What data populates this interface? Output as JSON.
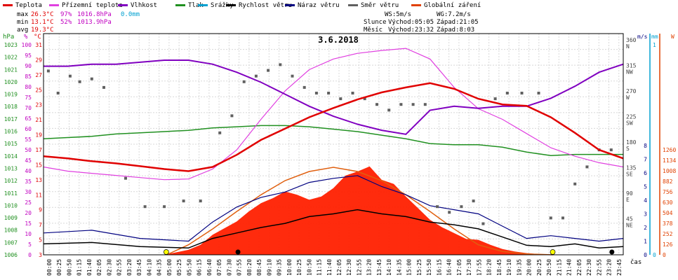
{
  "legend": [
    {
      "label": "Teplota",
      "color": "#e00000"
    },
    {
      "label": "Přízemní teplota",
      "color": "#e040e0"
    },
    {
      "label": "Vlhkost",
      "color": "#8000c0"
    },
    {
      "label": "Tlak",
      "color": "#209020"
    },
    {
      "label": "Srážky",
      "color": "#00a0d0"
    },
    {
      "label": "Rychlost větru",
      "color": "#000000"
    },
    {
      "label": "Náraz větru",
      "color": "#000080"
    },
    {
      "label": "Směr větru",
      "color": "#606060"
    },
    {
      "label": "Globální záření",
      "color": "#e04000"
    }
  ],
  "stats": {
    "max_label": "max",
    "max_temp": "26.3°C",
    "max_hum": "97%",
    "max_press": "1016.8hPa",
    "max_rain": "0.0mm",
    "min_label": "min",
    "min_temp": "13.1°C",
    "min_hum": "52%",
    "min_press": "1013.9hPa",
    "avg_label": "avg",
    "avg_temp": "19.3°C",
    "ws": "WS:5m/s",
    "wg": "WG:7.2m/s",
    "sun_label": "Slunce",
    "sun_rise": "Východ:05:05",
    "sun_set": "Západ:21:05",
    "moon_label": "Měsíc",
    "moon_rise": "Východ:23:32",
    "moon_set": "Západ:8:03"
  },
  "chart_data": {
    "type": "line",
    "title": "3.6.2018",
    "xlabel": "čas",
    "units": {
      "hpa": "hPa",
      "pct": "%",
      "c": "°C",
      "ms": "m/s",
      "mm": "mm",
      "w": "W"
    },
    "colors": {
      "temp": "#e00000",
      "ground": "#e040e0",
      "hum": "#8000c0",
      "press": "#209020",
      "rain": "#00a0d0",
      "wind": "#000000",
      "gust": "#000080",
      "dir": "#606060",
      "solar": "#ff2000",
      "solar_line": "#e06010",
      "axis_hpa": "#209020",
      "axis_pct": "#c000c0",
      "axis_c": "#e00000",
      "axis_ms": "#000080",
      "axis_mm": "#00a0d0",
      "axis_w": "#e04000"
    },
    "x_ticks": [
      "00:00",
      "00:25",
      "00:50",
      "01:15",
      "01:40",
      "02:05",
      "02:30",
      "02:55",
      "03:20",
      "03:45",
      "04:10",
      "04:35",
      "05:00",
      "05:25",
      "05:50",
      "06:15",
      "06:40",
      "07:05",
      "07:30",
      "07:55",
      "08:20",
      "08:45",
      "09:10",
      "09:35",
      "10:00",
      "10:25",
      "10:50",
      "11:15",
      "11:40",
      "12:05",
      "12:30",
      "12:55",
      "13:20",
      "13:45",
      "14:10",
      "14:35",
      "15:00",
      "15:25",
      "15:50",
      "16:15",
      "16:40",
      "17:05",
      "17:30",
      "17:55",
      "18:20",
      "18:45",
      "19:10",
      "19:35",
      "20:00",
      "20:25",
      "20:50",
      "21:15",
      "21:40",
      "22:05",
      "22:30",
      "22:55",
      "23:20",
      "23:45"
    ],
    "axis_hpa": {
      "range": [
        1006,
        1023
      ],
      "ticks": [
        "1023",
        "1022",
        "1021",
        "1020",
        "1019",
        "1018",
        "1017",
        "1016",
        "1015",
        "1014",
        "1013",
        "1012",
        "1011",
        "1010",
        "1009",
        "1008",
        "1007",
        "1006"
      ]
    },
    "axis_pct": {
      "range": [
        0,
        100
      ],
      "ticks": [
        "100",
        "95",
        "90",
        "85",
        "80",
        "75",
        "70",
        "65",
        "60",
        "55",
        "50",
        "45",
        "40",
        "35",
        "30",
        "25",
        "20",
        "15",
        "10",
        "5",
        "0"
      ]
    },
    "axis_c": {
      "range": [
        3,
        31
      ],
      "ticks": [
        "31",
        "29",
        "27",
        "25",
        "23",
        "21",
        "19",
        "17",
        "15",
        "13",
        "11",
        "9",
        "7",
        "5",
        "3"
      ]
    },
    "axis_dir": {
      "range": [
        0,
        360
      ],
      "ticks": [
        "360",
        "315",
        "270",
        "225",
        "180",
        "135",
        "90",
        "45"
      ],
      "names": [
        "N",
        "NW",
        "W",
        "SW",
        "S",
        "SE",
        "E",
        "NE"
      ]
    },
    "axis_ms": {
      "range": [
        0,
        8
      ],
      "ticks": [
        "8",
        "7",
        "6",
        "5",
        "4",
        "3",
        "2",
        "1",
        "0"
      ]
    },
    "axis_mm": {
      "range": [
        0,
        1
      ],
      "ticks": [
        "1",
        "0"
      ]
    },
    "axis_w": {
      "range": [
        0,
        1260
      ],
      "ticks": [
        "1260",
        "1134",
        "1008",
        "882",
        "756",
        "630",
        "504",
        "378",
        "252",
        "126",
        "0"
      ]
    },
    "series": {
      "temp": {
        "t": [
          0,
          1,
          2,
          3,
          4,
          5,
          6,
          7,
          8,
          9,
          10,
          11,
          12,
          13,
          14,
          15,
          16,
          17,
          18,
          19,
          20,
          21,
          22,
          23,
          24
        ],
        "v": [
          15.3,
          15.0,
          14.6,
          14.3,
          13.9,
          13.5,
          13.2,
          13.8,
          15.5,
          17.6,
          19.2,
          20.8,
          22.1,
          23.3,
          24.3,
          25.0,
          25.6,
          24.8,
          23.4,
          22.6,
          22.4,
          20.8,
          18.6,
          16.2,
          15.0
        ]
      },
      "ground": {
        "t": [
          0,
          1,
          2,
          3,
          4,
          5,
          6,
          7,
          8,
          9,
          10,
          11,
          12,
          13,
          14,
          15,
          16,
          17,
          18,
          19,
          20,
          21,
          22,
          23,
          24
        ],
        "v": [
          13.8,
          13.2,
          12.9,
          12.6,
          12.3,
          12.0,
          12.1,
          13.5,
          16.2,
          20.5,
          24.5,
          27.5,
          29.0,
          29.8,
          30.2,
          30.5,
          29.0,
          25.0,
          22.0,
          20.5,
          18.5,
          16.5,
          15.3,
          14.4,
          13.8
        ]
      },
      "hum": {
        "t": [
          0,
          1,
          2,
          3,
          4,
          5,
          6,
          7,
          8,
          9,
          10,
          11,
          12,
          13,
          14,
          15,
          16,
          17,
          18,
          19,
          20,
          21,
          22,
          23,
          24
        ],
        "v": [
          90,
          90,
          91,
          91,
          92,
          93,
          93,
          91,
          87,
          82,
          76,
          70,
          65,
          61,
          58,
          56,
          68,
          70,
          69,
          70,
          70,
          74,
          80,
          87,
          91
        ]
      },
      "press": {
        "t": [
          0,
          1,
          2,
          3,
          4,
          5,
          6,
          7,
          8,
          9,
          10,
          11,
          12,
          13,
          14,
          15,
          16,
          17,
          18,
          19,
          20,
          21,
          22,
          23,
          24
        ],
        "v": [
          1015.3,
          1015.4,
          1015.5,
          1015.7,
          1015.8,
          1015.9,
          1016.0,
          1016.2,
          1016.3,
          1016.4,
          1016.4,
          1016.3,
          1016.1,
          1015.9,
          1015.6,
          1015.3,
          1014.9,
          1014.8,
          1014.8,
          1014.6,
          1014.2,
          1013.9,
          1014.0,
          1014.0,
          1014.0
        ]
      },
      "solar_theoretical": {
        "t": [
          5.1,
          6,
          7,
          8,
          9,
          10,
          11,
          12,
          13,
          14,
          15,
          16,
          17,
          18,
          19,
          20,
          21.1
        ],
        "v": [
          0,
          120,
          310,
          520,
          720,
          890,
          1000,
          1050,
          1000,
          890,
          720,
          520,
          310,
          120,
          40,
          10,
          0
        ]
      },
      "solar": {
        "t": [
          5.0,
          6,
          6.5,
          7,
          7.5,
          8,
          8.5,
          9,
          9.5,
          10,
          10.5,
          11,
          11.5,
          12,
          12.5,
          13,
          13.5,
          14,
          14.5,
          15,
          15.5,
          16,
          16.5,
          17,
          17.5,
          18,
          18.5,
          19,
          19.5,
          20,
          20.5,
          21.1
        ],
        "v": [
          0,
          60,
          120,
          240,
          320,
          400,
          520,
          620,
          680,
          760,
          720,
          660,
          700,
          800,
          950,
          1000,
          1060,
          900,
          850,
          700,
          560,
          420,
          330,
          260,
          190,
          180,
          120,
          70,
          40,
          20,
          8,
          0
        ]
      },
      "wind_avg_ms": {
        "t": [
          0,
          2,
          4,
          6,
          7,
          8,
          9,
          10,
          11,
          12,
          13,
          14,
          15,
          16,
          17,
          18,
          19,
          20,
          21,
          22,
          23,
          24
        ],
        "v": [
          0.8,
          0.9,
          0.6,
          0.5,
          1.2,
          1.6,
          2.0,
          2.3,
          2.8,
          3.0,
          3.3,
          3.0,
          2.8,
          2.4,
          2.2,
          1.9,
          1.3,
          0.7,
          0.6,
          0.8,
          0.5,
          0.6
        ]
      },
      "gust_ms": {
        "t": [
          0,
          2,
          4,
          6,
          7,
          8,
          9,
          10,
          11,
          12,
          13,
          14,
          15,
          16,
          17,
          18,
          19,
          20,
          21,
          22,
          23,
          24
        ],
        "v": [
          1.6,
          1.8,
          1.2,
          1.0,
          2.4,
          3.5,
          4.2,
          4.6,
          5.3,
          5.6,
          5.8,
          5.0,
          4.4,
          3.6,
          3.3,
          3.0,
          2.1,
          1.2,
          1.4,
          1.2,
          1.0,
          1.2
        ]
      },
      "dir_deg": {
        "t": [
          0.2,
          0.6,
          1.1,
          1.5,
          2.0,
          2.5,
          3.4,
          4.2,
          5.0,
          5.8,
          6.5,
          7.3,
          7.8,
          8.3,
          8.8,
          9.3,
          9.8,
          10.3,
          10.8,
          11.3,
          11.8,
          12.3,
          12.8,
          13.3,
          13.8,
          14.3,
          14.8,
          15.3,
          15.8,
          16.3,
          16.8,
          17.3,
          17.8,
          18.2,
          18.7,
          19.2,
          19.8,
          20.5,
          21.0,
          21.5,
          22.0,
          22.5,
          23.0,
          23.5
        ],
        "v": [
          309,
          270,
          300,
          290,
          295,
          280,
          120,
          70,
          70,
          80,
          80,
          200,
          230,
          290,
          300,
          310,
          320,
          300,
          280,
          270,
          270,
          260,
          270,
          260,
          250,
          240,
          250,
          250,
          250,
          70,
          60,
          70,
          80,
          40,
          260,
          270,
          270,
          270,
          50,
          50,
          110,
          140,
          170,
          170
        ]
      }
    }
  }
}
